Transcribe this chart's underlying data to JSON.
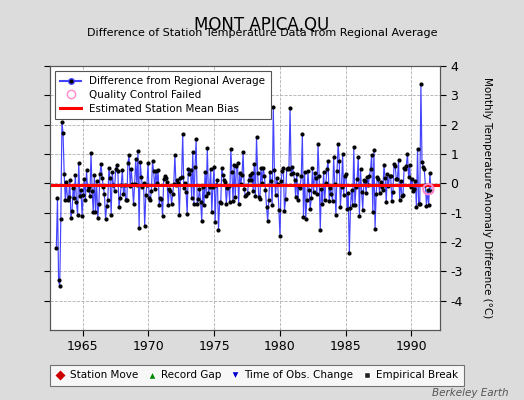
{
  "title": "MONT APICA,QU",
  "subtitle": "Difference of Station Temperature Data from Regional Average",
  "ylabel_right": "Monthly Temperature Anomaly Difference (°C)",
  "bias": -0.05,
  "xlim": [
    1962.5,
    1992.2
  ],
  "ylim": [
    -5,
    4
  ],
  "yticks": [
    -4,
    -3,
    -2,
    -1,
    0,
    1,
    2,
    3,
    4
  ],
  "xticks": [
    1965,
    1970,
    1975,
    1980,
    1985,
    1990
  ],
  "bg_color": "#dcdcdc",
  "plot_bg_color": "#ffffff",
  "line_color": "#4444ff",
  "dot_color": "#000000",
  "bias_color": "#ff0000",
  "qc_color": "#ff88cc",
  "watermark": "Berkeley Earth",
  "seed": 42,
  "n_points": 336,
  "start_year": 1963.0,
  "end_year": 1991.5
}
